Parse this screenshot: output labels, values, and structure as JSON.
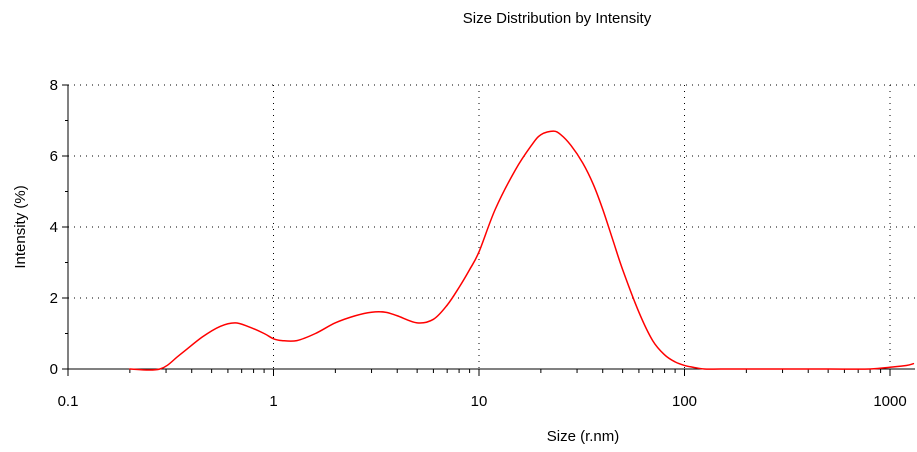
{
  "chart_data": {
    "type": "line",
    "title": "Size Distribution by Intensity",
    "xlabel": "Size (r.nm)",
    "ylabel": "Intensity (%)",
    "xscale": "log",
    "xlim": [
      0.1,
      1300
    ],
    "ylim": [
      0,
      8
    ],
    "grid": true,
    "x_ticks": [
      0.1,
      1,
      10,
      100,
      1000
    ],
    "x_tick_labels": [
      "0.1",
      "1",
      "10",
      "100",
      "1000"
    ],
    "y_ticks": [
      0,
      2,
      4,
      6,
      8
    ],
    "y_tick_labels": [
      "0",
      "2",
      "4",
      "6",
      "8"
    ],
    "series": [
      {
        "color": "#ff0000",
        "x": [
          0.2,
          0.28,
          0.35,
          0.45,
          0.55,
          0.65,
          0.75,
          0.9,
          1.0,
          1.1,
          1.3,
          1.6,
          2.0,
          2.5,
          3.0,
          3.5,
          4.0,
          5.0,
          6.0,
          7.0,
          8.0,
          9.0,
          10,
          12,
          15,
          18,
          20,
          23,
          25,
          28,
          32,
          36,
          40,
          45,
          50,
          60,
          70,
          80,
          90,
          100,
          110,
          125,
          150,
          200,
          300,
          500,
          800,
          1000,
          1200,
          1300
        ],
        "y": [
          0,
          0,
          0.4,
          0.9,
          1.2,
          1.3,
          1.2,
          1.0,
          0.85,
          0.8,
          0.8,
          1.0,
          1.3,
          1.5,
          1.6,
          1.6,
          1.5,
          1.3,
          1.4,
          1.8,
          2.3,
          2.8,
          3.3,
          4.5,
          5.6,
          6.3,
          6.6,
          6.7,
          6.6,
          6.3,
          5.8,
          5.2,
          4.5,
          3.6,
          2.8,
          1.6,
          0.8,
          0.4,
          0.2,
          0.1,
          0.05,
          0,
          0,
          0,
          0,
          0,
          0,
          0.05,
          0.1,
          0.15
        ]
      }
    ]
  }
}
